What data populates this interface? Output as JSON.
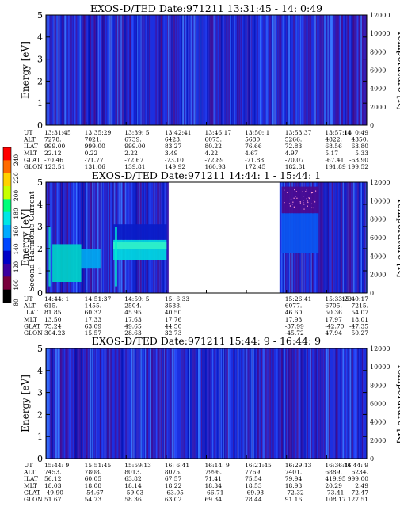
{
  "colorbar": {
    "label": "Second Harmonic Current",
    "ticks": [
      "240",
      "220",
      "200",
      "180",
      "160",
      "140",
      "120",
      "100",
      "80"
    ],
    "colors": [
      "#ff0000",
      "#ff6a00",
      "#ffd200",
      "#c8ff00",
      "#00ff7a",
      "#00e6e6",
      "#00aaff",
      "#0046ff",
      "#0000c8",
      "#3c00a0",
      "#78003c",
      "#000000"
    ]
  },
  "chart_data": [
    {
      "type": "heatmap",
      "title": "EXOS-D/TED   Date:971211  13:31:45 - 14: 0:49",
      "ylabel": "Energy [eV]",
      "ylabel_right": "Temperature [K]",
      "ylim": [
        0,
        5
      ],
      "yticks": [
        "0",
        "1",
        "2",
        "3",
        "4",
        "5"
      ],
      "ylim_right": [
        0,
        12000
      ],
      "yticks_right": [
        "0",
        "2000",
        "4000",
        "6000",
        "8000",
        "10000",
        "12000"
      ],
      "background": "#1c2fe0",
      "coverage": [
        [
          0,
          1
        ]
      ],
      "bands": [],
      "row_labels": [
        "UT",
        "ALT",
        "ILAT",
        "MLT",
        "GLAT",
        "GLON"
      ],
      "columns": [
        [
          "13:31:45",
          "7278.",
          "999.00",
          "22.12",
          "-70.46",
          "123.51"
        ],
        [
          "13:35:29",
          "7021.",
          "999.00",
          "0.22",
          "-71.77",
          "131.06"
        ],
        [
          "13:39: 5",
          "6739.",
          "999.00",
          "2.22",
          "-72.67",
          "139.81"
        ],
        [
          "13:42:41",
          "6423.",
          "83.27",
          "3.49",
          "-73.10",
          "149.92"
        ],
        [
          "13:46:17",
          "6075.",
          "80.22",
          "4.22",
          "-72.89",
          "160.93"
        ],
        [
          "13:50: 1",
          "5680.",
          "76.66",
          "4.67",
          "-71.88",
          "172.45"
        ],
        [
          "13:53:37",
          "5266.",
          "72.83",
          "4.97",
          "-70.07",
          "182.81"
        ],
        [
          "13:57:13",
          "4822.",
          "68.56",
          "5.17",
          "-67.41",
          "191.89"
        ],
        [
          "14: 0:49",
          "4350.",
          "63.80",
          "5.33",
          "-63.90",
          "199.52"
        ]
      ]
    },
    {
      "type": "heatmap",
      "title": "EXOS-D/TED   Date:971211  14:44: 1 - 15:44: 1",
      "ylabel": "Energy [eV]",
      "ylabel_right": "Temperature [K]",
      "ylim": [
        0,
        5
      ],
      "yticks": [
        "0",
        "1",
        "2",
        "3",
        "4",
        "5"
      ],
      "ylim_right": [
        0,
        12000
      ],
      "yticks_right": [
        "0",
        "2000",
        "4000",
        "6000",
        "8000",
        "10000",
        "12000"
      ],
      "background": "#1c2fe0",
      "coverage": [
        [
          0,
          0.382
        ],
        [
          0.728,
          1
        ]
      ],
      "bands": [
        {
          "x": [
            0.02,
            0.11
          ],
          "y": [
            0.5,
            2.2
          ],
          "color": "#00d2c8"
        },
        {
          "x": [
            0.11,
            0.17
          ],
          "y": [
            1.1,
            2.0
          ],
          "color": "#00a8f0"
        },
        {
          "x": [
            0.21,
            0.376
          ],
          "y": [
            1.5,
            2.4
          ],
          "color": "#00d8e0"
        },
        {
          "x": [
            0.21,
            0.376
          ],
          "y": [
            2.0,
            2.3
          ],
          "color": "#30f0c8"
        },
        {
          "x": [
            0.21,
            0.376
          ],
          "y": [
            2.4,
            3.1
          ],
          "color": "#0a1cc8"
        },
        {
          "x": [
            0.735,
            0.85
          ],
          "y": [
            1.8,
            3.6
          ],
          "color": "#0a56f0"
        },
        {
          "x": [
            0.735,
            0.85
          ],
          "y": [
            3.6,
            4.8
          ],
          "color": "#4a0a90"
        }
      ],
      "row_labels": [
        "UT",
        "ALT",
        "ILAT",
        "MLT",
        "GLAT",
        "GLON"
      ],
      "columns": [
        [
          "14:44: 1",
          "615.",
          "81.85",
          "13.50",
          "75.24",
          "304.23"
        ],
        [
          "14:51:37",
          "1455.",
          "60.32",
          "17.33",
          "63.09",
          "15.57"
        ],
        [
          "14:59: 5",
          "2504.",
          "45.95",
          "17.63",
          "49.65",
          "28.63"
        ],
        [
          "15: 6:33",
          "3588.",
          "40.50",
          "17.76",
          "44.50",
          "32.73"
        ],
        [
          "",
          "",
          "",
          "",
          "",
          ""
        ],
        [
          "",
          "",
          "",
          "",
          "",
          ""
        ],
        [
          "15:26:41",
          "6077.",
          "46.60",
          "17.93",
          "-37.99",
          "-45.72"
        ],
        [
          "15:33:29",
          "6705.",
          "50.36",
          "17.97",
          "-42.70",
          "47.94"
        ],
        [
          "15:40:17",
          "7215.",
          "54.07",
          "18.01",
          "-47.35",
          "50.27"
        ]
      ]
    },
    {
      "type": "heatmap",
      "title": "EXOS-D/TED   Date:971211  15:44: 9 - 16:44: 9",
      "ylabel": "Energy [eV]",
      "ylabel_right": "Temperature [K]",
      "ylim": [
        0,
        5
      ],
      "yticks": [
        "0",
        "1",
        "2",
        "3",
        "4",
        "5"
      ],
      "ylim_right": [
        0,
        12000
      ],
      "yticks_right": [
        "0",
        "2000",
        "4000",
        "6000",
        "8000",
        "10000",
        "12000"
      ],
      "background": "#1c2fe0",
      "coverage": [
        [
          0,
          1
        ]
      ],
      "bands": [],
      "row_labels": [
        "UT",
        "ALT",
        "ILAT",
        "MLT",
        "GLAT",
        "GLON"
      ],
      "columns": [
        [
          "15:44: 9",
          "7453.",
          "56.12",
          "18.03",
          "-49.90",
          "51.67"
        ],
        [
          "15:51:45",
          "7808.",
          "60.05",
          "18.08",
          "-54.67",
          "54.73"
        ],
        [
          "15:59:13",
          "8013.",
          "63.82",
          "18.14",
          "-59.03",
          "58.36"
        ],
        [
          "16: 6:41",
          "8075.",
          "67.57",
          "18.22",
          "-63.05",
          "63.02"
        ],
        [
          "16:14: 9",
          "7996.",
          "71.41",
          "18.34",
          "-66.71",
          "69.34"
        ],
        [
          "16:21:45",
          "7769.",
          "75.54",
          "18.53",
          "-69.93",
          "78.44"
        ],
        [
          "16:29:13",
          "7401.",
          "79.94",
          "18.93",
          "-72.32",
          "91.16"
        ],
        [
          "16:36:41",
          "6889.",
          "419.95",
          "20.29",
          "-73.41",
          "108.17"
        ],
        [
          "16:44: 9",
          "6234.",
          "999.00",
          "2.49",
          "-72.47",
          "127.51"
        ]
      ]
    }
  ]
}
